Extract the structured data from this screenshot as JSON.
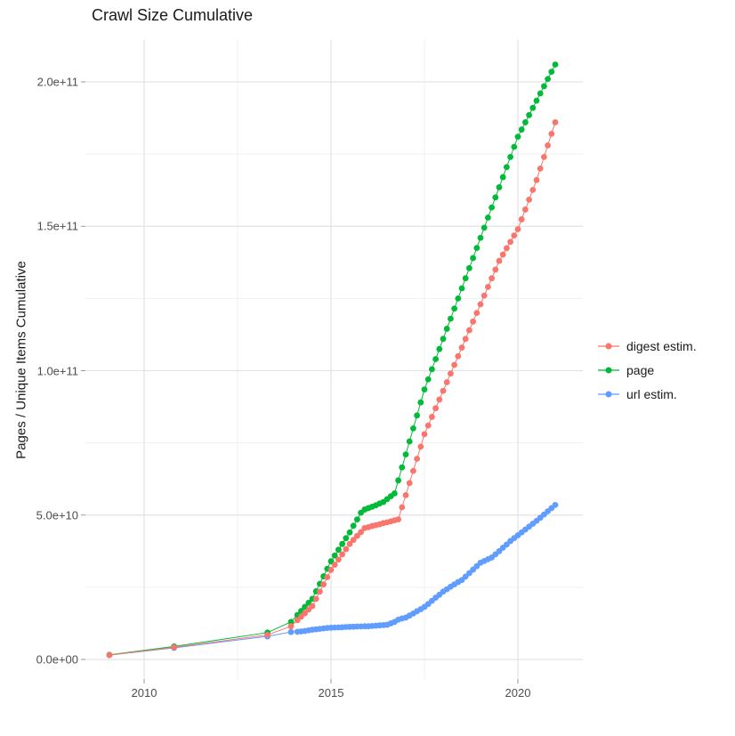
{
  "title": "Crawl Size Cumulative",
  "y_axis": {
    "label": "Pages / Unique Items Cumulative",
    "tick_labels": [
      "0.0e+00",
      "5.0e+10",
      "1.0e+11",
      "1.5e+11",
      "2.0e+11"
    ],
    "tick_values": [
      0,
      50,
      100,
      150,
      200
    ],
    "minor_values": [
      25,
      75,
      125,
      175
    ]
  },
  "x_axis": {
    "tick_labels": [
      "2010",
      "2015",
      "2020"
    ],
    "tick_values": [
      2010,
      2015,
      2020
    ],
    "minor_values": [
      2012.5,
      2017.5
    ]
  },
  "legend": {
    "items": [
      {
        "label": "digest estim.",
        "color": "#F8766D"
      },
      {
        "label": "page",
        "color": "#00BA38"
      },
      {
        "label": "url estim.",
        "color": "#619CFF"
      }
    ]
  },
  "colors": {
    "digest": "#F8766D",
    "page": "#00BA38",
    "url": "#619CFF",
    "grid_major": "#e3e3e3",
    "grid_minor": "#f1f1f1",
    "tick_text": "#4d4d4d",
    "title_text": "#1a1a1a"
  },
  "chart_data": {
    "type": "line",
    "title": "Crawl Size Cumulative",
    "xlabel": "",
    "ylabel": "Pages / Unique Items Cumulative",
    "xlim": [
      2008.5,
      2021.8
    ],
    "ylim": [
      0,
      215000000000.0
    ],
    "grid": true,
    "legend_position": "right",
    "values_unit": "1e9 pages (values below are in billions)",
    "x": [
      2009.07,
      2010.8,
      2013.3,
      2013.93,
      2014.1,
      2014.2,
      2014.3,
      2014.4,
      2014.5,
      2014.6,
      2014.7,
      2014.8,
      2014.9,
      2015.0,
      2015.1,
      2015.2,
      2015.3,
      2015.4,
      2015.5,
      2015.6,
      2015.7,
      2015.8,
      2015.9,
      2016.0,
      2016.1,
      2016.2,
      2016.3,
      2016.4,
      2016.5,
      2016.6,
      2016.7,
      2016.8,
      2016.9,
      2017.0,
      2017.1,
      2017.2,
      2017.3,
      2017.4,
      2017.5,
      2017.6,
      2017.7,
      2017.8,
      2017.9,
      2018.0,
      2018.1,
      2018.2,
      2018.3,
      2018.4,
      2018.5,
      2018.6,
      2018.7,
      2018.8,
      2018.9,
      2019.0,
      2019.1,
      2019.2,
      2019.3,
      2019.4,
      2019.5,
      2019.6,
      2019.7,
      2019.8,
      2019.9,
      2020.0,
      2020.1,
      2020.2,
      2020.3,
      2020.4,
      2020.5,
      2020.6,
      2020.7,
      2020.8,
      2020.9,
      2021.0
    ],
    "series": [
      {
        "name": "digest estim.",
        "color": "#F8766D",
        "values": [
          1.5,
          4.2,
          8.5,
          11.5,
          13.6,
          14.8,
          16.0,
          17.3,
          18.5,
          21.0,
          23.5,
          26.0,
          28.5,
          31.0,
          32.8,
          34.6,
          36.4,
          38.2,
          40.0,
          41.4,
          42.8,
          44.1,
          45.5,
          45.8,
          46.2,
          46.5,
          46.8,
          47.2,
          47.5,
          47.8,
          48.2,
          48.5,
          52.7,
          56.9,
          61.1,
          65.3,
          69.5,
          73.7,
          78.0,
          81.0,
          84.0,
          87.0,
          90.0,
          93.0,
          96.0,
          99.0,
          102.0,
          105.0,
          108.0,
          111.0,
          114.0,
          117.0,
          120.0,
          123.0,
          126.0,
          129.0,
          132.0,
          135.0,
          138.0,
          140.2,
          142.4,
          144.6,
          146.8,
          149.0,
          152.4,
          155.8,
          159.2,
          162.6,
          166.0,
          170.0,
          174.0,
          178.0,
          182.0,
          186.0
        ]
      },
      {
        "name": "page",
        "color": "#00BA38",
        "values": [
          1.6,
          4.5,
          9.3,
          13.0,
          15.4,
          16.8,
          18.2,
          19.6,
          21.0,
          23.6,
          26.2,
          28.8,
          31.4,
          34.0,
          36.0,
          38.0,
          40.0,
          42.0,
          44.0,
          46.3,
          48.5,
          50.8,
          51.9,
          52.4,
          52.9,
          53.4,
          54.0,
          54.5,
          55.5,
          56.5,
          57.5,
          62.0,
          66.5,
          71.0,
          75.5,
          80.0,
          84.5,
          89.0,
          93.5,
          97.0,
          100.5,
          104.0,
          107.5,
          111.0,
          114.5,
          118.0,
          121.5,
          125.0,
          128.5,
          132.0,
          135.5,
          139.0,
          142.5,
          146.0,
          149.5,
          153.0,
          156.5,
          160.0,
          163.5,
          167.0,
          170.5,
          174.0,
          177.5,
          181.0,
          183.5,
          186.0,
          188.5,
          191.0,
          193.5,
          196.0,
          198.5,
          201.0,
          203.5,
          206.0
        ]
      },
      {
        "name": "url estim.",
        "color": "#619CFF",
        "values": [
          1.5,
          4.0,
          8.0,
          9.5,
          9.6,
          9.7,
          9.85,
          10.1,
          10.3,
          10.45,
          10.6,
          10.75,
          10.9,
          11.0,
          11.05,
          11.1,
          11.15,
          11.25,
          11.3,
          11.35,
          11.4,
          11.45,
          11.5,
          11.5,
          11.6,
          11.7,
          11.8,
          11.9,
          12.0,
          12.5,
          13.0,
          13.8,
          14.2,
          14.5,
          15.2,
          15.9,
          16.7,
          17.4,
          18.2,
          19.2,
          20.3,
          21.4,
          22.4,
          23.5,
          24.3,
          25.2,
          26.0,
          26.8,
          27.5,
          28.7,
          29.9,
          31.1,
          32.3,
          33.5,
          34.1,
          34.7,
          35.3,
          36.4,
          37.5,
          38.7,
          39.8,
          41.0,
          42.0,
          43.0,
          44.0,
          45.0,
          46.0,
          47.0,
          48.0,
          49.1,
          50.2,
          51.3,
          52.4,
          53.5
        ]
      }
    ]
  }
}
